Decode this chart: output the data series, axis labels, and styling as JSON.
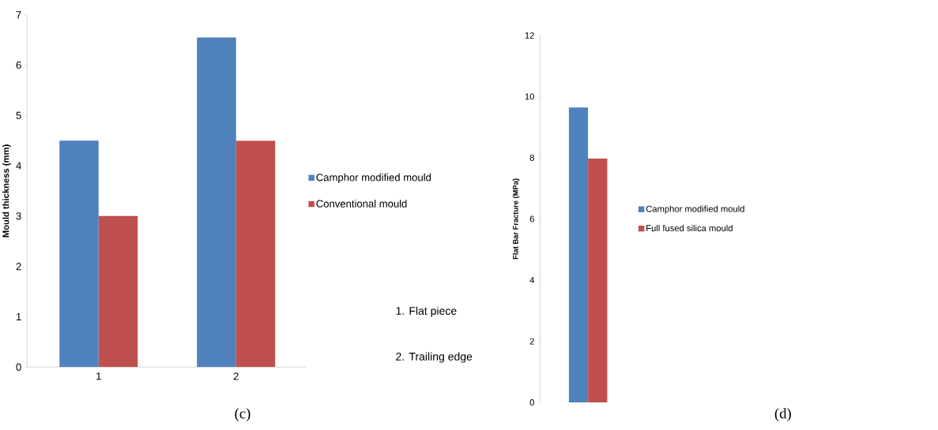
{
  "chart_data": [
    {
      "type": "bar",
      "ylabel": "Mould thickness  (mm)",
      "categories": [
        "1",
        "2"
      ],
      "series": [
        {
          "name": "Camphor modified mould",
          "color": "#4f81bd",
          "values": [
            4.5,
            6.55
          ]
        },
        {
          "name": "Conventional mould",
          "color": "#c0504d",
          "values": [
            3.0,
            4.5
          ]
        }
      ],
      "ylim": [
        0,
        7
      ],
      "yticks": [
        0,
        1,
        2,
        3,
        4,
        5,
        6,
        7
      ],
      "legend": "right",
      "annotations": [
        "1. Flat piece",
        "2. Trailing edge",
        "(c)"
      ]
    },
    {
      "type": "bar",
      "ylabel": "Flat Bar Fracture (MPa)",
      "categories": [
        null
      ],
      "series": [
        {
          "name": "Camphor  modified mould",
          "color": "#4f81bd",
          "values": [
            9.64
          ]
        },
        {
          "name": "Full fused silica mould",
          "color": "#c0504d",
          "values": [
            7.97
          ]
        }
      ],
      "ylim": [
        0,
        12
      ],
      "yticks": [
        0,
        2,
        4,
        6,
        8,
        10,
        12
      ],
      "legend": "right",
      "tick_labels": "y",
      "annotations": [
        "(d)"
      ]
    }
  ]
}
